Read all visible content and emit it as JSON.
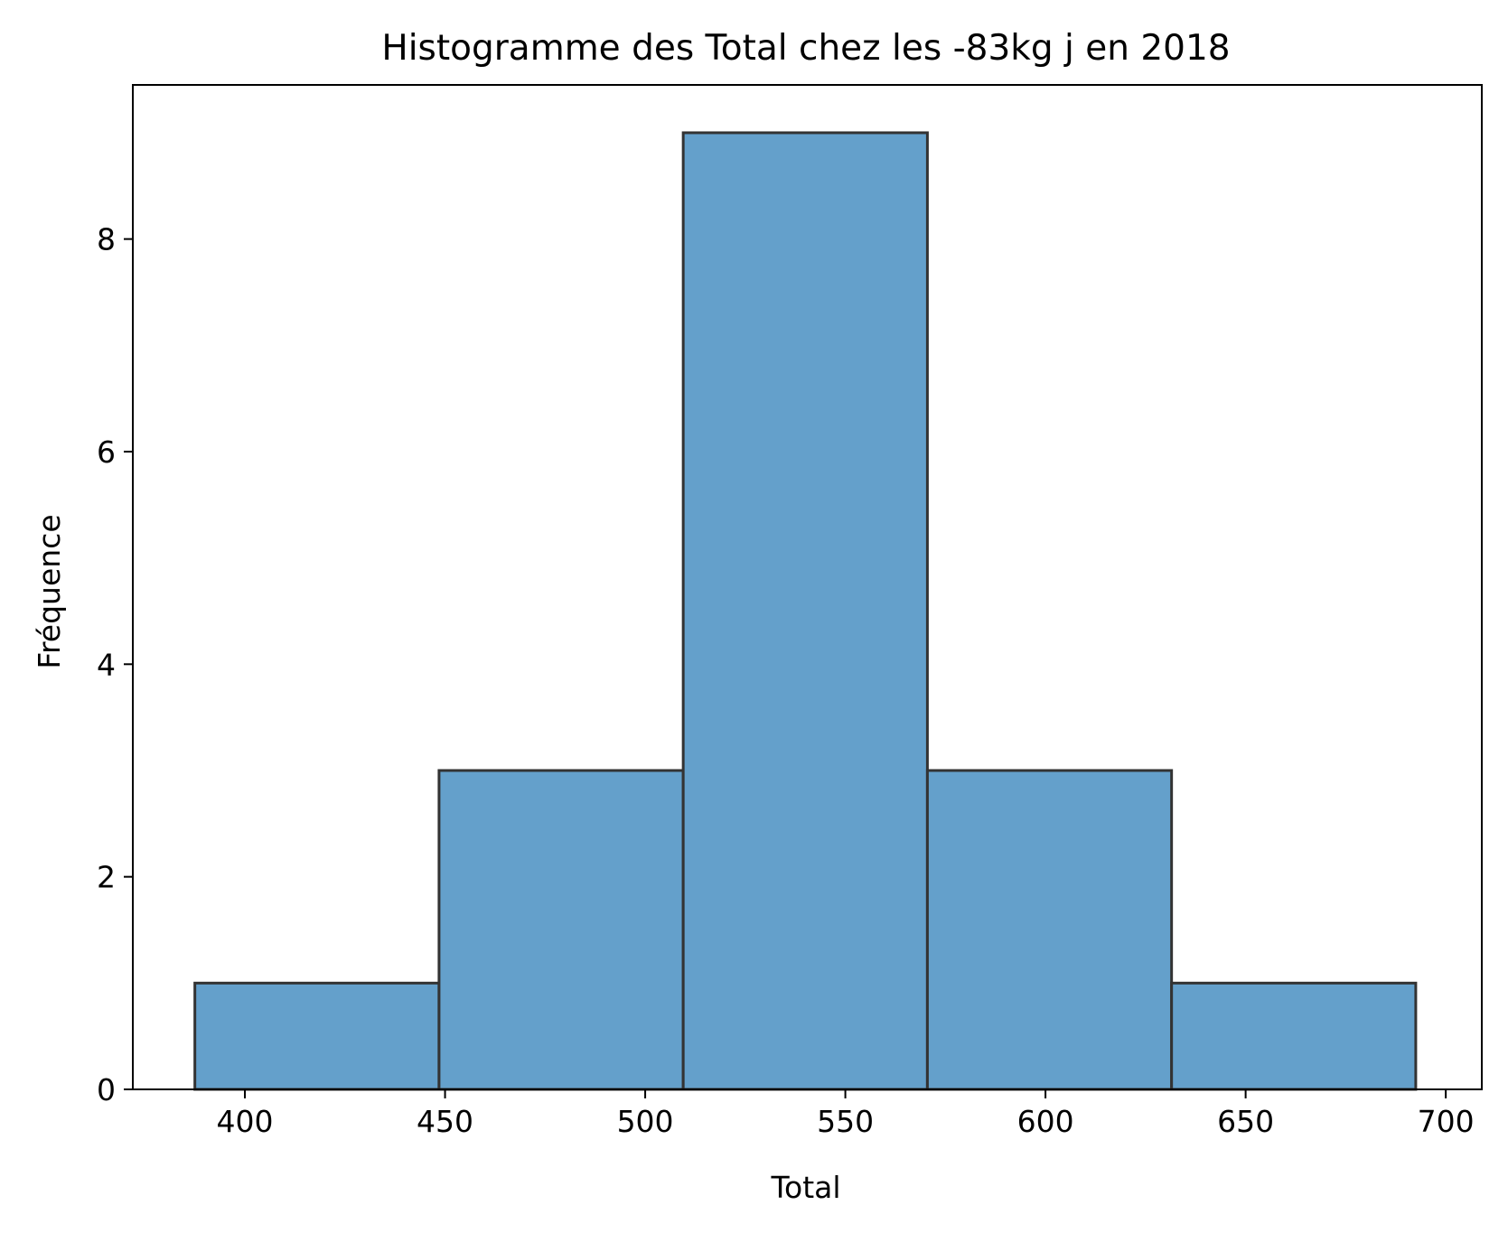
{
  "chart_data": {
    "type": "bar",
    "title": "Histogramme des Total chez les -83kg j en 2018",
    "xlabel": "Total",
    "ylabel": "Fréquence",
    "bin_edges": [
      387.5,
      448.5,
      509.5,
      570.5,
      631.5,
      692.5
    ],
    "values": [
      1,
      3,
      9,
      3,
      1
    ],
    "xlim": [
      372,
      709
    ],
    "ylim": [
      0,
      9.45
    ],
    "xticks": [
      400,
      450,
      500,
      550,
      600,
      650,
      700
    ],
    "yticks": [
      0,
      2,
      4,
      6,
      8
    ],
    "grid": false,
    "bar_color": "#64a0cb",
    "edge_color": "#333333"
  }
}
